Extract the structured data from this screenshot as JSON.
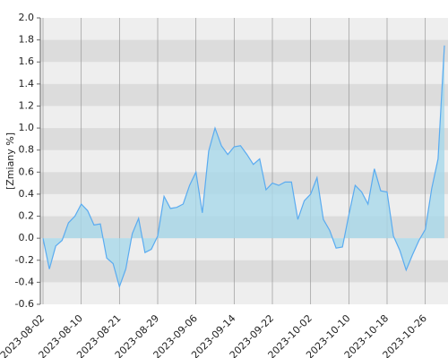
{
  "chart_data": {
    "type": "area",
    "y_label": "[Zmiany %]",
    "categories": [
      "2023-08-02",
      null,
      null,
      null,
      null,
      null,
      "2023-08-10",
      null,
      null,
      null,
      null,
      null,
      "2023-08-21",
      null,
      null,
      null,
      null,
      null,
      "2023-08-29",
      null,
      null,
      null,
      null,
      null,
      "2023-09-06",
      null,
      null,
      null,
      null,
      null,
      "2023-09-14",
      null,
      null,
      null,
      null,
      null,
      "2023-09-22",
      null,
      null,
      null,
      null,
      null,
      "2023-10-02",
      null,
      null,
      null,
      null,
      null,
      "2023-10-10",
      null,
      null,
      null,
      null,
      null,
      "2023-10-18",
      null,
      null,
      null,
      null,
      null,
      "2023-10-26",
      null,
      null,
      null
    ],
    "values": [
      0.0,
      -0.28,
      -0.07,
      -0.02,
      0.14,
      0.2,
      0.31,
      0.25,
      0.12,
      0.13,
      -0.18,
      -0.23,
      -0.44,
      -0.28,
      0.04,
      0.18,
      -0.13,
      -0.1,
      0.02,
      0.38,
      0.27,
      0.28,
      0.31,
      0.48,
      0.6,
      0.23,
      0.79,
      1.0,
      0.84,
      0.76,
      0.83,
      0.84,
      0.76,
      0.67,
      0.72,
      0.44,
      0.5,
      0.48,
      0.51,
      0.51,
      0.17,
      0.34,
      0.4,
      0.55,
      0.17,
      0.07,
      -0.09,
      -0.08,
      0.21,
      0.48,
      0.42,
      0.31,
      0.63,
      0.43,
      0.42,
      0.02,
      -0.11,
      -0.29,
      -0.15,
      -0.02,
      0.08,
      0.45,
      0.72,
      1.75
    ],
    "color": "#5aabf0",
    "fill_color": "#a8d8ea",
    "ylim": [
      -0.6,
      2.0
    ],
    "yticks": [
      -0.6,
      -0.4,
      -0.2,
      {
        "value": 0,
        "label": "0.0"
      },
      0.2,
      0.4,
      0.6,
      0.8,
      {
        "value": 1,
        "label": "1.0"
      },
      1.2,
      1.4,
      1.6,
      1.8,
      {
        "value": 2,
        "label": "2.0"
      }
    ],
    "grid": true
  }
}
